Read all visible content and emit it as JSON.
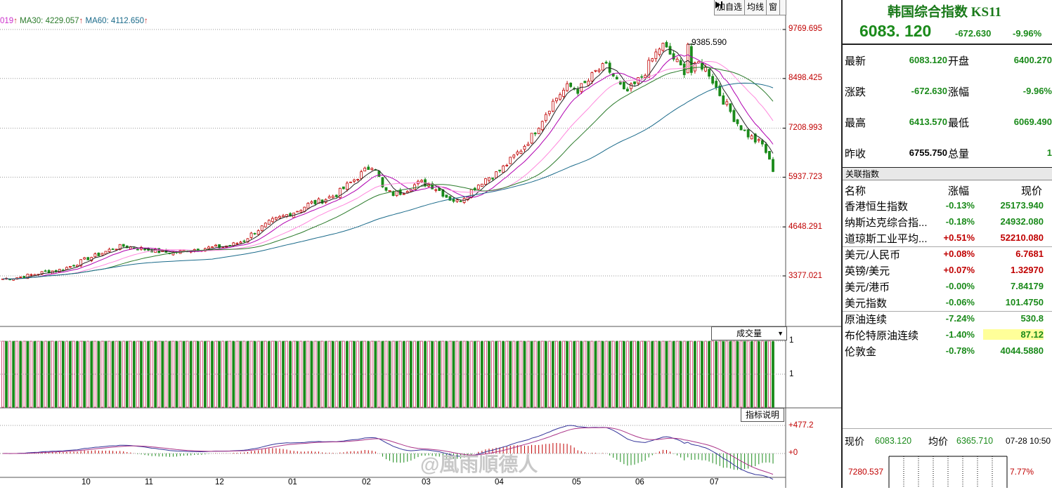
{
  "toolbar": {
    "add_fav": "加自选",
    "avg_line": "均线",
    "window": "窗",
    "arrow_icon": "arrow-right-bar-icon"
  },
  "ma_legend": {
    "ma_prev_tail": "019",
    "ma30": "MA30: 4229.057",
    "ma60": "MA60: 4112.650",
    "up_arrow": "↑",
    "colors": {
      "ma_prev": "#cc33cc",
      "ma30": "#2a7a2a",
      "ma60": "#1a6a8a",
      "arrow": "#cc3333"
    }
  },
  "price_axis": [
    "9769.695",
    "8498.425",
    "7208.993",
    "5937.723",
    "4648.291",
    "3377.021"
  ],
  "peak_label": "9385.590",
  "volume": {
    "selector_label": "成交量",
    "axis_labels": [
      "1",
      "1"
    ]
  },
  "indicator": {
    "button_label": "指标说明",
    "axis_labels": [
      "+477.2",
      "+0"
    ]
  },
  "x_axis": [
    "10",
    "11",
    "12",
    "01",
    "02",
    "03",
    "04",
    "05",
    "06",
    "07"
  ],
  "watermark": "@風雨順德人",
  "panel": {
    "title": "韩国综合指数 KS11",
    "price": "6083. 120",
    "change": "-672.630",
    "change_pct": "-9.96%",
    "quote": [
      {
        "label1": "最新",
        "value1": "6083.120",
        "label2": "开盘",
        "value2": "6400.270"
      },
      {
        "label1": "涨跌",
        "value1": "-672.630",
        "label2": "涨幅",
        "value2": "-9.96%"
      },
      {
        "label1": "最高",
        "value1": "6413.570",
        "label2": "最低",
        "value2": "6069.490"
      },
      {
        "label1": "昨收",
        "value1": "6755.750",
        "label2": "总量",
        "value2": "1"
      }
    ],
    "related_title": "关联指数",
    "related_headers": {
      "name": "名称",
      "pct": "涨幅",
      "price": "现价"
    },
    "related": [
      {
        "name": "香港恒生指数",
        "pct": "-0.13%",
        "price": "25173.940",
        "dir": "down"
      },
      {
        "name": "纳斯达克综合指...",
        "pct": "-0.18%",
        "price": "24932.080",
        "dir": "down"
      },
      {
        "name": "道琼斯工业平均...",
        "pct": "+0.51%",
        "price": "52210.080",
        "dir": "up"
      },
      {
        "name": "美元/人民币",
        "pct": "+0.08%",
        "price": "6.7681",
        "dir": "up"
      },
      {
        "name": "英镑/美元",
        "pct": "+0.07%",
        "price": "1.32970",
        "dir": "up"
      },
      {
        "name": "美元/港币",
        "pct": "-0.00%",
        "price": "7.84179",
        "dir": "down"
      },
      {
        "name": "美元指数",
        "pct": "-0.06%",
        "price": "101.4750",
        "dir": "down"
      },
      {
        "name": "原油连续",
        "pct": "-7.24%",
        "price": "530.8",
        "dir": "down"
      },
      {
        "name": "布伦特原油连续",
        "pct": "-1.40%",
        "price": "87.12",
        "dir": "down"
      },
      {
        "name": "伦敦金",
        "pct": "-0.78%",
        "price": "4044.5880",
        "dir": "down"
      }
    ],
    "now": {
      "label": "现价",
      "value": "6083.120",
      "avg_label": "均价",
      "avg_value": "6365.710",
      "time": "07-28 10:50"
    },
    "mini": {
      "left_label": "7280.537",
      "right_label": "7.77%"
    }
  },
  "chart_data": {
    "type": "candlestick",
    "x_ticks": [
      "10",
      "11",
      "12",
      "01",
      "02",
      "03",
      "04",
      "05",
      "06",
      "07"
    ],
    "y_ticks": [
      9769.695,
      8498.425,
      7208.993,
      5937.723,
      4648.291,
      3377.021
    ],
    "close_trend": [
      3300,
      3320,
      3350,
      3400,
      3450,
      3500,
      3520,
      3600,
      3700,
      3820,
      3900,
      4000,
      4100,
      4150,
      4120,
      4080,
      4050,
      4000,
      3980,
      4000,
      4050,
      4080,
      4100,
      4120,
      4150,
      4200,
      4300,
      4500,
      4650,
      4800,
      4900,
      5000,
      5100,
      5250,
      5300,
      5400,
      5500,
      5700,
      5900,
      6100,
      6300,
      5600,
      5500,
      5550,
      5700,
      5800,
      5750,
      5600,
      5400,
      5300,
      5500,
      5700,
      5900,
      6000,
      6200,
      6450,
      6700,
      7000,
      7400,
      7800,
      8100,
      8300,
      8200,
      8400,
      8700,
      8800,
      8500,
      8100,
      8300,
      8600,
      9000,
      9385.59,
      9100,
      8800,
      8600,
      8900,
      8700,
      8200,
      7800,
      7400,
      7100,
      6900,
      6755.75,
      6083.12
    ],
    "ma_series": [
      "MA30",
      "MA60"
    ],
    "ma30_last": 4229.057,
    "ma60_last": 4112.65,
    "peak": 9385.59,
    "last_close": 6083.12,
    "up_color": "#c00000",
    "down_color": "#1a8a1a"
  }
}
